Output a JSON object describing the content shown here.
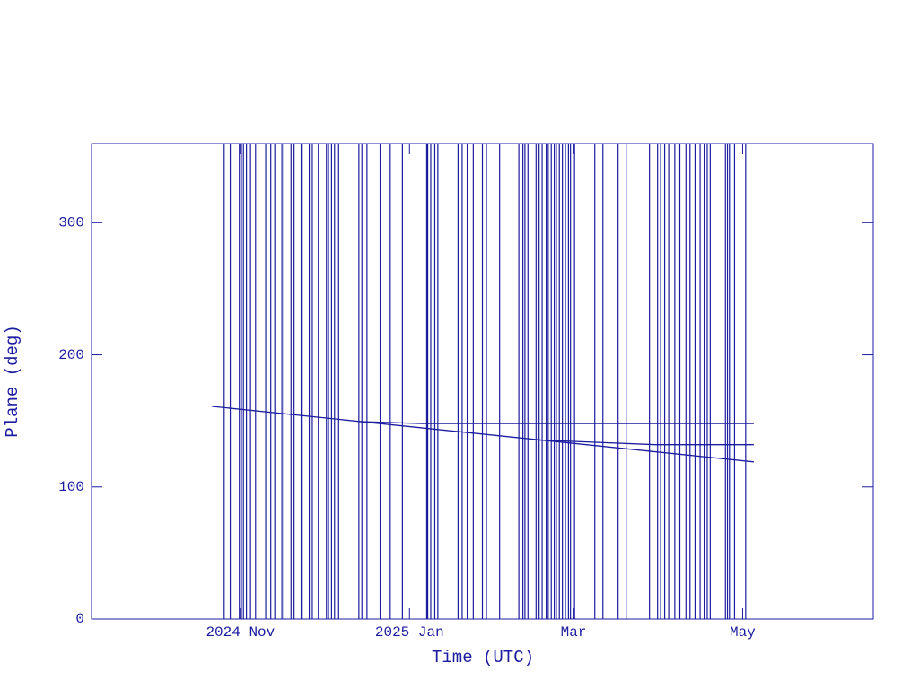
{
  "chart_data": {
    "type": "line",
    "xlabel": "Time (UTC)",
    "ylabel": "Plane (deg)",
    "xlim": [
      2024.686,
      2025.458
    ],
    "xticks": [
      {
        "value": 2024.833,
        "label": "2024 Nov"
      },
      {
        "value": 2025.0,
        "label": "2025 Jan"
      },
      {
        "value": 2025.162,
        "label": "Mar"
      },
      {
        "value": 2025.329,
        "label": "May"
      }
    ],
    "ylim": [
      0,
      360
    ],
    "yticks": [
      0,
      100,
      200,
      300
    ],
    "grid": false,
    "color": "#1c1ca0",
    "series": [
      {
        "color": "#1c1ca0",
        "x": [
          2024.805,
          2025.34
        ],
        "values": [
          161,
          119
        ]
      },
      {
        "color": "#1c1ca0",
        "x": [
          2024.95,
          2025.012,
          2025.34
        ],
        "values": [
          149.5,
          148,
          148
        ]
      },
      {
        "color": "#1c1ca0",
        "x": [
          2025.127,
          2025.243,
          2025.34
        ],
        "values": [
          135.5,
          132,
          132
        ]
      }
    ],
    "vlines": [
      2024.817,
      2024.823,
      2024.832,
      2024.834,
      2024.836,
      2024.839,
      2024.843,
      2024.848,
      2024.858,
      2024.863,
      2024.867,
      2024.874,
      2024.876,
      2024.883,
      2024.886,
      2024.893,
      2024.894,
      2024.901,
      2024.904,
      2024.91,
      2024.918,
      2024.92,
      2024.923,
      2024.926,
      2024.93,
      2024.95,
      2024.953,
      2024.958,
      2024.971,
      2024.981,
      2024.993,
      2025.017,
      2025.018,
      2025.021,
      2025.025,
      2025.028,
      2025.048,
      2025.052,
      2025.057,
      2025.063,
      2025.072,
      2025.076,
      2025.089,
      2025.108,
      2025.112,
      2025.114,
      2025.117,
      2025.125,
      2025.127,
      2025.128,
      2025.131,
      2025.135,
      2025.137,
      2025.14,
      2025.143,
      2025.145,
      2025.148,
      2025.151,
      2025.154,
      2025.157,
      2025.159,
      2025.163,
      2025.183,
      2025.191,
      2025.206,
      2025.214,
      2025.237,
      2025.245,
      2025.248,
      2025.252,
      2025.256,
      2025.262,
      2025.267,
      2025.273,
      2025.277,
      2025.282,
      2025.287,
      2025.291,
      2025.294,
      2025.297,
      2025.312,
      2025.314,
      2025.316,
      2025.321,
      2025.332
    ]
  }
}
